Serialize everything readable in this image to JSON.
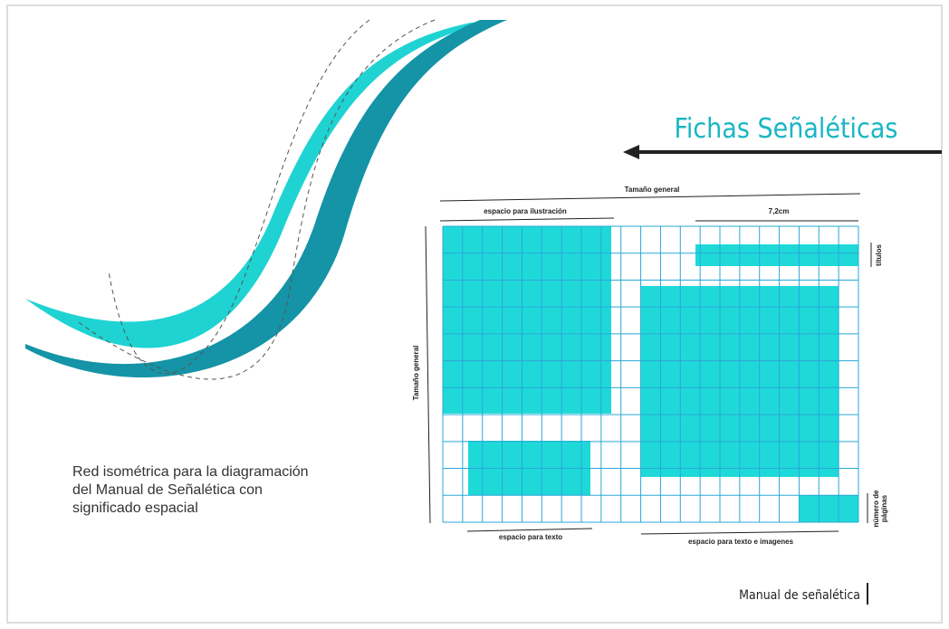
{
  "heading": "Fichas Señaléticas",
  "diagram": {
    "width_label": "Tamaño general",
    "height_label": "Tamaño general",
    "illustration_label": "espacio para ilustración",
    "measure_label": "7,2cm",
    "titles_label": "títulos",
    "page_number_label": [
      "número de",
      "páginas"
    ],
    "text_label": "espacio para texto",
    "text_images_label": "espacio para texto e imagenes"
  },
  "caption": [
    "Red isométrica para la diagramación",
    "del Manual de Señalética  con",
    "significado espacial"
  ],
  "footer": "Manual de señalética"
}
